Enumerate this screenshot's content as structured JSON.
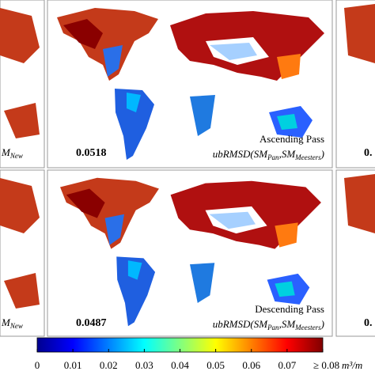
{
  "panels": [
    {
      "score": "0.0518",
      "pass": "Ascending Pass",
      "metric": {
        "prefix": "ubRMSD",
        "a": "SM",
        "a_sub": "Pan",
        "b": "SM",
        "b_sub": "Meesters"
      },
      "left_fragment": {
        "text": "M",
        "sub": "New"
      },
      "right_fragment": "0."
    },
    {
      "score": "0.0487",
      "pass": "Descending Pass",
      "metric": {
        "prefix": "ubRMSD",
        "a": "SM",
        "a_sub": "Pan",
        "b": "SM",
        "b_sub": "Meesters"
      },
      "left_fragment": {
        "text": "M",
        "sub": "New"
      },
      "right_fragment": "0."
    }
  ],
  "colorbar": {
    "lim": [
      0,
      0.08
    ],
    "ticks": [
      0,
      0.01,
      0.02,
      0.03,
      0.04,
      0.05,
      0.06,
      0.07,
      {
        "value": 0.08,
        "label": "≥ 0.08"
      }
    ],
    "unit": "m³/m",
    "colors": [
      "#00008f",
      "#0000ff",
      "#0080ff",
      "#00ffff",
      "#80ff80",
      "#ffff00",
      "#ff8000",
      "#ff0000",
      "#800000"
    ]
  }
}
